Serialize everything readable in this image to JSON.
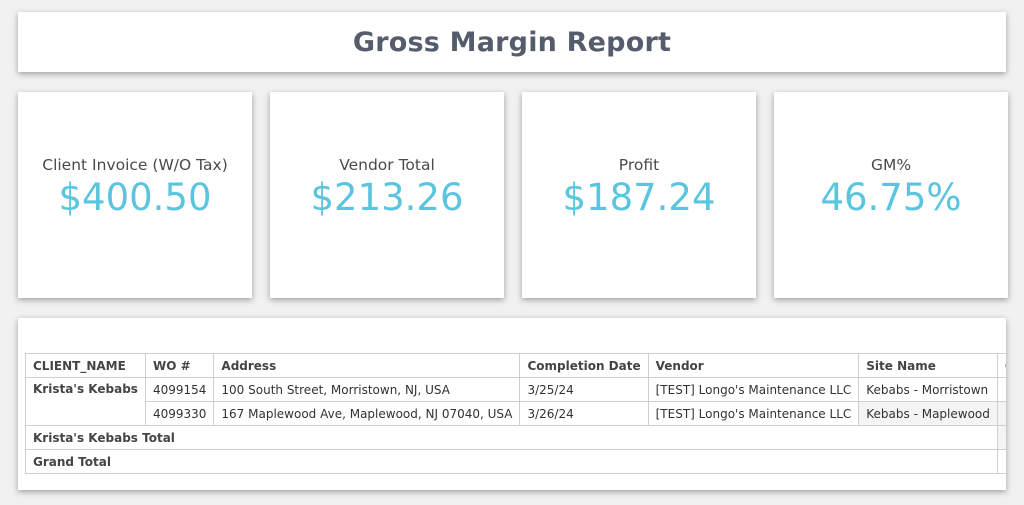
{
  "title": "Gross Margin Report",
  "kpis": [
    {
      "label": "Client Invoice (W/O Tax)",
      "value": "$400.50"
    },
    {
      "label": "Vendor Total",
      "value": "$213.26"
    },
    {
      "label": "Profit",
      "value": "$187.24"
    },
    {
      "label": "GM%",
      "value": "46.75%"
    }
  ],
  "table": {
    "headers": [
      "CLIENT_NAME",
      "WO #",
      "Address",
      "Completion Date",
      "Vendor",
      "Site Name",
      "Clien"
    ],
    "group": "Krista's Kebabs",
    "rows": [
      {
        "wo": "4099154",
        "address": "100 South Street, Morristown, NJ, USA",
        "date": "3/25/24",
        "vendor": "[TEST] Longo's Maintenance LLC",
        "site": "Kebabs - Morristown",
        "client": ""
      },
      {
        "wo": "4099330",
        "address": "167 Maplewood Ave, Maplewood, NJ 07040, USA",
        "date": "3/26/24",
        "vendor": "[TEST] Longo's Maintenance LLC",
        "site": "Kebabs - Maplewood",
        "client": ""
      }
    ],
    "subtotal_label": "Krista's Kebabs Total",
    "grand_total_label": "Grand Total"
  },
  "colors": {
    "accent": "#5bc5df",
    "title": "#555c6b"
  }
}
